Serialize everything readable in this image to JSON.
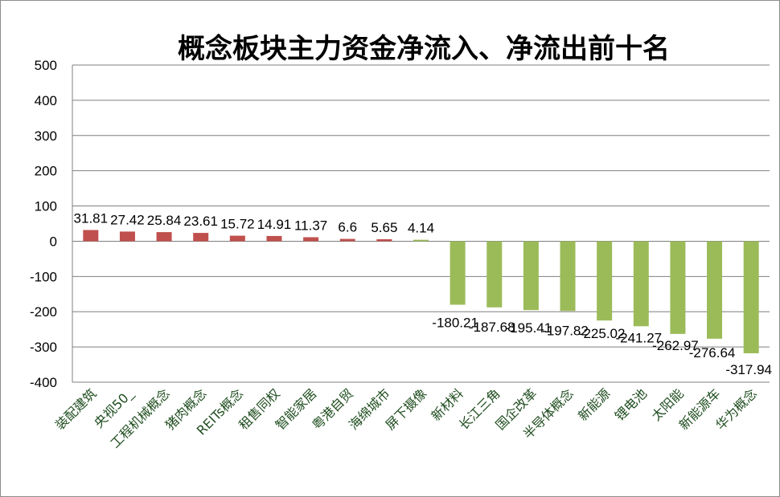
{
  "chart_data": {
    "type": "bar",
    "title": "概念板块主力资金净流入、净流出前十名",
    "xlabel": "",
    "ylabel": "",
    "ylim": [
      -400,
      500
    ],
    "yticks": [
      500,
      400,
      300,
      200,
      100,
      0,
      -100,
      -200,
      -300,
      -400
    ],
    "grid": true,
    "legend": "none",
    "categories": [
      "装配建筑",
      "央视50_",
      "工程机械概念",
      "猪肉概念",
      "REITs概念",
      "租售同权",
      "智能家居",
      "粤港自贸",
      "海绵城市",
      "屏下摄像",
      "新材料",
      "长江三角",
      "国企改革",
      "半导体概念",
      "新能源",
      "锂电池",
      "太阳能",
      "新能源车",
      "华为概念"
    ],
    "values": [
      31.81,
      27.42,
      25.84,
      23.61,
      15.72,
      14.91,
      11.37,
      6.6,
      5.65,
      4.14,
      -180.21,
      -187.68,
      -195.41,
      -197.82,
      -225.02,
      -241.27,
      -262.97,
      -276.64,
      -317.94
    ],
    "value_labels": [
      "31.81",
      "27.42",
      "25.84",
      "23.61",
      "15.72",
      "14.91",
      "11.37",
      "6.6",
      "5.65",
      "4.14",
      "-180.21",
      "-187.68",
      "-195.41",
      "-197.82",
      "-225.02",
      "-241.27",
      "-262.97",
      "-276.64",
      "-317.94"
    ],
    "colors": {
      "inflow_bar": "#c0504d",
      "small_inflow_bar": "#9bbb59",
      "outflow_bar": "#9bbb59",
      "grid": "#7f7f7f",
      "axis_label": "#1f4d1f"
    }
  }
}
